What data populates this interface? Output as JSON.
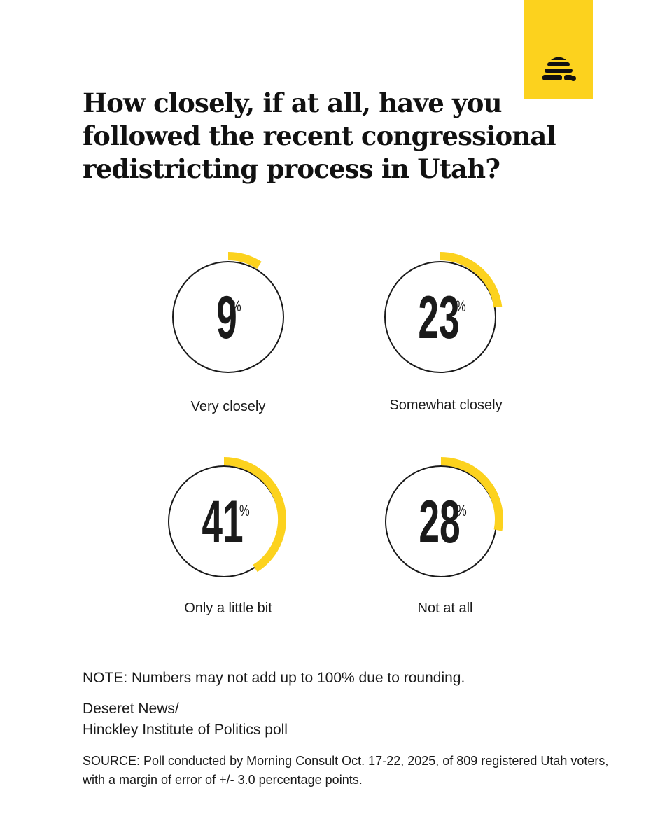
{
  "brand": {
    "accent": "#fcd21e",
    "ink": "#111111",
    "logo_icon": "beehive-icon"
  },
  "title": "How closely, if at all, have you followed the recent congressional redistricting process in Utah?",
  "chart_data": {
    "type": "pie",
    "unit": "%",
    "categories": [
      "Very closely",
      "Somewhat closely",
      "Only a little bit",
      "Not at all"
    ],
    "values": [
      9,
      23,
      41,
      28
    ],
    "colors": {
      "arc": "#fcd21e",
      "ring": "#1a1a1a"
    }
  },
  "note": "NOTE: Numbers may not add up to 100% due to rounding.",
  "byline": {
    "line1": "Deseret News/",
    "line2": "Hinckley Institute of Politics poll"
  },
  "source": "SOURCE: Poll conducted by Morning Consult Oct. 17-22, 2025, of 809 registered Utah voters, with a margin of error of +/- 3.0 percentage points."
}
